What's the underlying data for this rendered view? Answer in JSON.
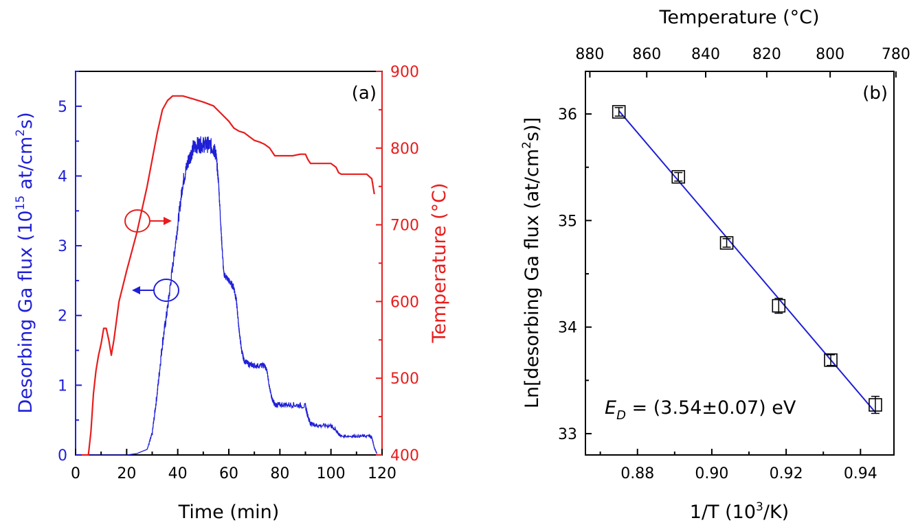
{
  "chart_data": [
    {
      "type": "line",
      "panel_label": "(a)",
      "xlabel": "Time (min)",
      "ylabel_left": "Desorbing Ga flux (10",
      "ylabel_left_sup": "15",
      "ylabel_left_mid": " at/cm",
      "ylabel_left_sup2": "2",
      "ylabel_left_end": "s)",
      "ylabel_right": "Temperature (°C)",
      "xlim": [
        0,
        120
      ],
      "ylim_left": [
        0,
        5.5
      ],
      "ylim_right": [
        400,
        900
      ],
      "x_ticks": [
        "0",
        "20",
        "40",
        "60",
        "80",
        "100",
        "120"
      ],
      "y_left_ticks": [
        "0",
        "1",
        "2",
        "3",
        "4",
        "5"
      ],
      "y_right_ticks": [
        "400",
        "500",
        "600",
        "700",
        "800",
        "900"
      ],
      "colors": {
        "flux": "#1f1fd6",
        "temperature": "#e81c1c"
      },
      "series": [
        {
          "axis": "left",
          "x": [
            0,
            10,
            20,
            24,
            26,
            28,
            30,
            32,
            34,
            36,
            38,
            40,
            42,
            44,
            46,
            48,
            50,
            52,
            54,
            55,
            56,
            57,
            58,
            60,
            62,
            63,
            64,
            65,
            66,
            68,
            70,
            74,
            75,
            76,
            77,
            78,
            80,
            85,
            90,
            91,
            92,
            95,
            100,
            102,
            103,
            104,
            110,
            115,
            116,
            117,
            118
          ],
          "y": [
            0,
            0,
            0,
            0.02,
            0.05,
            0.08,
            0.3,
            0.9,
            1.6,
            2.1,
            2.7,
            3.3,
            3.9,
            4.2,
            4.4,
            4.45,
            4.45,
            4.45,
            4.4,
            4.3,
            3.9,
            3.2,
            2.6,
            2.5,
            2.4,
            2.2,
            1.8,
            1.5,
            1.35,
            1.3,
            1.28,
            1.28,
            1.2,
            0.95,
            0.8,
            0.72,
            0.72,
            0.72,
            0.7,
            0.55,
            0.45,
            0.42,
            0.42,
            0.35,
            0.3,
            0.27,
            0.27,
            0.27,
            0.25,
            0.1,
            0.02
          ],
          "noise": [
            0,
            0,
            0,
            0,
            0,
            0,
            0.04,
            0.06,
            0.08,
            0.08,
            0.08,
            0.09,
            0.1,
            0.12,
            0.12,
            0.12,
            0.12,
            0.12,
            0.12,
            0.1,
            0.06,
            0.06,
            0.05,
            0.05,
            0.05,
            0.05,
            0.04,
            0.04,
            0.04,
            0.04,
            0.04,
            0.04,
            0.03,
            0.03,
            0.03,
            0.04,
            0.04,
            0.04,
            0.04,
            0.04,
            0.03,
            0.03,
            0.03,
            0.03,
            0.02,
            0.02,
            0.02,
            0.02,
            0.02,
            0.01,
            0.01
          ]
        },
        {
          "axis": "right",
          "x": [
            0,
            5,
            6,
            7,
            8,
            9,
            10,
            11,
            12,
            13,
            14,
            15,
            17,
            20,
            24,
            28,
            32,
            34,
            36,
            38,
            42,
            46,
            50,
            54,
            57,
            60,
            62,
            64,
            66,
            68,
            70,
            72,
            74,
            76,
            78,
            80,
            85,
            88,
            90,
            91,
            92,
            96,
            100,
            102,
            103,
            104,
            110,
            114,
            116,
            117
          ],
          "y": [
            400,
            400,
            430,
            480,
            510,
            530,
            545,
            565,
            565,
            550,
            530,
            550,
            600,
            640,
            690,
            750,
            820,
            850,
            862,
            868,
            868,
            864,
            860,
            855,
            845,
            835,
            826,
            822,
            820,
            815,
            810,
            808,
            805,
            800,
            790,
            790,
            790,
            792,
            792,
            785,
            780,
            780,
            780,
            775,
            768,
            766,
            766,
            766,
            760,
            740
          ]
        }
      ],
      "annotations": [
        "flux-marker-circle",
        "temperature-marker-circle"
      ]
    },
    {
      "type": "scatter",
      "panel_label": "(b)",
      "xlabel": "1/T (10",
      "xlabel_sup": "3",
      "xlabel_end": "/K)",
      "ylabel": "Ln[desorbing Ga flux (at/cm",
      "ylabel_sup": "2",
      "ylabel_end": "s)]",
      "top_xlabel": "Temperature (°C)",
      "xlim": [
        0.866,
        0.949
      ],
      "ylim": [
        32.8,
        36.4
      ],
      "x_ticks": [
        "0.88",
        "0.90",
        "0.92",
        "0.94"
      ],
      "x_tick_values": [
        0.88,
        0.9,
        0.92,
        0.94
      ],
      "y_ticks": [
        "33",
        "34",
        "35",
        "36"
      ],
      "y_tick_values": [
        33,
        34,
        35,
        36
      ],
      "top_ticks": [
        "880",
        "860",
        "840",
        "820",
        "800",
        "780"
      ],
      "top_tick_values": [
        880,
        860,
        840,
        820,
        800,
        780
      ],
      "points": [
        {
          "x": 0.875,
          "y": 36.02,
          "err": 0.04
        },
        {
          "x": 0.891,
          "y": 35.41,
          "err": 0.04
        },
        {
          "x": 0.904,
          "y": 34.79,
          "err": 0.04
        },
        {
          "x": 0.918,
          "y": 34.2,
          "err": 0.07
        },
        {
          "x": 0.932,
          "y": 33.69,
          "err": 0.05
        },
        {
          "x": 0.944,
          "y": 33.27,
          "err": 0.08
        }
      ],
      "fit": {
        "x": [
          0.875,
          0.944
        ],
        "y": [
          36.03,
          33.2
        ]
      },
      "fit_color": "#1f1fd6",
      "annotation_prefix": "E",
      "annotation_sub": "D",
      "annotation_rest": " = (3.54±0.07) eV"
    }
  ]
}
